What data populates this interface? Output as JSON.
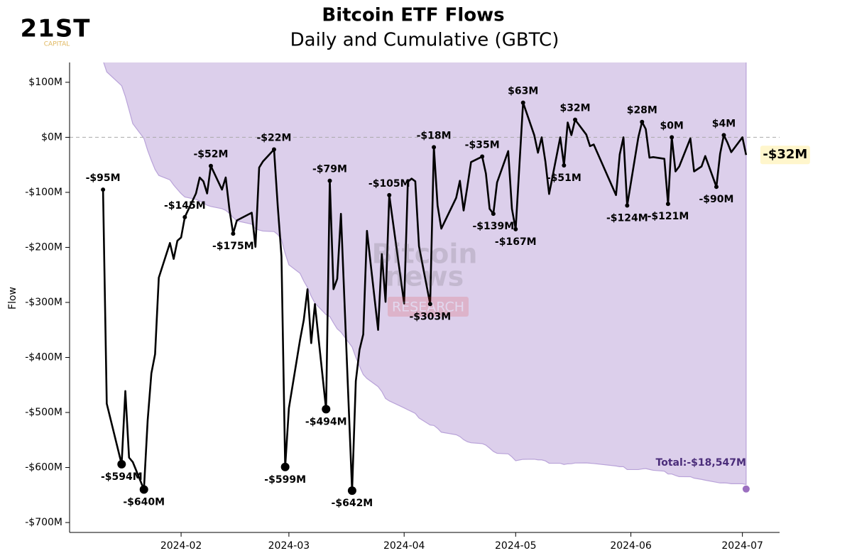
{
  "logo": {
    "name": "21ST",
    "tagline": "CAPITAL"
  },
  "watermark": {
    "lines": [
      "Bitcoin",
      "news"
    ],
    "badge": "RESEARCH"
  },
  "chart_data": {
    "type": "line",
    "title": "Bitcoin ETF Flows",
    "subtitle": "Daily and Cumulative (GBTC)",
    "y_label": "Flow",
    "color": "#000000",
    "area_color": "#dccfeb",
    "area_edge_color": "#b9a3d9",
    "total_color": "#9b6fc0",
    "total_label_color": "#4b2d7a",
    "zero_line": true,
    "x": [
      "2024-01-11",
      "2024-01-12",
      "2024-01-16",
      "2024-01-17",
      "2024-01-18",
      "2024-01-19",
      "2024-01-22",
      "2024-01-23",
      "2024-01-24",
      "2024-01-25",
      "2024-01-26",
      "2024-01-29",
      "2024-01-30",
      "2024-01-31",
      "2024-02-01",
      "2024-02-02",
      "2024-02-05",
      "2024-02-06",
      "2024-02-07",
      "2024-02-08",
      "2024-02-09",
      "2024-02-12",
      "2024-02-13",
      "2024-02-14",
      "2024-02-15",
      "2024-02-16",
      "2024-02-20",
      "2024-02-21",
      "2024-02-22",
      "2024-02-23",
      "2024-02-26",
      "2024-02-27",
      "2024-02-28",
      "2024-02-29",
      "2024-03-01",
      "2024-03-04",
      "2024-03-05",
      "2024-03-06",
      "2024-03-07",
      "2024-03-08",
      "2024-03-11",
      "2024-03-12",
      "2024-03-13",
      "2024-03-14",
      "2024-03-15",
      "2024-03-18",
      "2024-03-19",
      "2024-03-20",
      "2024-03-21",
      "2024-03-22",
      "2024-03-25",
      "2024-03-26",
      "2024-03-27",
      "2024-03-28",
      "2024-04-01",
      "2024-04-02",
      "2024-04-03",
      "2024-04-04",
      "2024-04-05",
      "2024-04-08",
      "2024-04-09",
      "2024-04-10",
      "2024-04-11",
      "2024-04-15",
      "2024-04-16",
      "2024-04-17",
      "2024-04-18",
      "2024-04-19",
      "2024-04-22",
      "2024-04-23",
      "2024-04-24",
      "2024-04-25",
      "2024-04-26",
      "2024-04-29",
      "2024-04-30",
      "2024-05-01",
      "2024-05-03",
      "2024-05-06",
      "2024-05-07",
      "2024-05-08",
      "2024-05-09",
      "2024-05-10",
      "2024-05-13",
      "2024-05-14",
      "2024-05-15",
      "2024-05-16",
      "2024-05-17",
      "2024-05-20",
      "2024-05-21",
      "2024-05-22",
      "2024-05-28",
      "2024-05-29",
      "2024-05-30",
      "2024-05-31",
      "2024-06-03",
      "2024-06-04",
      "2024-06-05",
      "2024-06-06",
      "2024-06-07",
      "2024-06-10",
      "2024-06-11",
      "2024-06-12",
      "2024-06-13",
      "2024-06-14",
      "2024-06-17",
      "2024-06-18",
      "2024-06-20",
      "2024-06-21",
      "2024-06-24",
      "2024-06-25",
      "2024-06-26",
      "2024-06-27",
      "2024-06-28",
      "2024-07-01",
      "2024-07-02"
    ],
    "values": [
      -95,
      -484,
      -594,
      -461,
      -582,
      -590,
      -640,
      -515,
      -429,
      -394,
      -255,
      -192,
      -221,
      -188,
      -182,
      -145,
      -102,
      -73,
      -80,
      -102,
      -52,
      -95,
      -73,
      -131,
      -175,
      -151,
      -137,
      -199,
      -55,
      -44,
      -22,
      -125,
      -216,
      -599,
      -492,
      -368,
      -332,
      -276,
      -374,
      -303,
      -494,
      -79,
      -276,
      -257,
      -139,
      -642,
      -443,
      -386,
      -358,
      -170,
      -350,
      -212,
      -299,
      -105,
      -302,
      -81,
      -75,
      -80,
      -198,
      -303,
      -18,
      -124,
      -166,
      -110,
      -79,
      -133,
      -90,
      -45,
      -35,
      -66,
      -130,
      -139,
      -82,
      -25,
      -130,
      -167,
      63,
      4,
      -28,
      0,
      -44,
      -103,
      0,
      -51,
      27,
      4,
      32,
      5,
      -16,
      -13,
      -105,
      -31,
      0,
      -124,
      0,
      28,
      15,
      -37,
      -36,
      -39,
      -121,
      0,
      -62,
      -53,
      -2,
      -62,
      -53,
      -34,
      -90,
      -30,
      4,
      -10,
      -27,
      0,
      -32
    ],
    "value_labels": [
      "-$95M",
      null,
      "-$594M",
      null,
      null,
      null,
      "-$640M",
      null,
      null,
      null,
      null,
      null,
      null,
      null,
      null,
      "-$145M",
      null,
      null,
      null,
      null,
      "-$52M",
      null,
      null,
      null,
      "-$175M",
      null,
      null,
      null,
      null,
      null,
      "-$22M",
      null,
      null,
      "-$599M",
      null,
      null,
      null,
      null,
      null,
      null,
      "-$494M",
      "-$79M",
      null,
      null,
      null,
      "-$642M",
      null,
      null,
      null,
      null,
      null,
      null,
      null,
      "-$105M",
      null,
      null,
      null,
      null,
      null,
      "-$303M",
      "-$18M",
      null,
      null,
      null,
      null,
      null,
      null,
      null,
      "-$35M",
      null,
      null,
      "-$139M",
      null,
      null,
      null,
      "-$167M",
      "$63M",
      null,
      null,
      null,
      null,
      null,
      null,
      "-$51M",
      null,
      null,
      "$32M",
      null,
      null,
      null,
      null,
      null,
      null,
      "-$124M",
      null,
      "$28M",
      null,
      null,
      null,
      null,
      "-$121M",
      "$0M",
      null,
      null,
      null,
      null,
      null,
      null,
      "-$90M",
      null,
      "$4M",
      null,
      null,
      null,
      "-$32M"
    ],
    "total": {
      "value": -18547,
      "label": "Total:-$18,547M"
    },
    "xlim": [
      "2024-01-02",
      "2024-07-11"
    ],
    "xticks": [
      {
        "value": "2024-02-01",
        "label": "2024-02"
      },
      {
        "value": "2024-03-01",
        "label": "2024-03"
      },
      {
        "value": "2024-04-01",
        "label": "2024-04"
      },
      {
        "value": "2024-05-01",
        "label": "2024-05"
      },
      {
        "value": "2024-06-01",
        "label": "2024-06"
      },
      {
        "value": "2024-07-01",
        "label": "2024-07"
      }
    ],
    "ylim": [
      -718,
      136
    ],
    "yticks": [
      {
        "value": 100,
        "label": "$100M"
      },
      {
        "value": 0,
        "label": "$0M"
      },
      {
        "value": -100,
        "label": "-$100M"
      },
      {
        "value": -200,
        "label": "-$200M"
      },
      {
        "value": -300,
        "label": "-$300M"
      },
      {
        "value": -400,
        "label": "-$400M"
      },
      {
        "value": -500,
        "label": "-$500M"
      },
      {
        "value": -600,
        "label": "-$600M"
      },
      {
        "value": -700,
        "label": "-$700M"
      }
    ],
    "y2lim": [
      -20419,
      -174
    ]
  }
}
